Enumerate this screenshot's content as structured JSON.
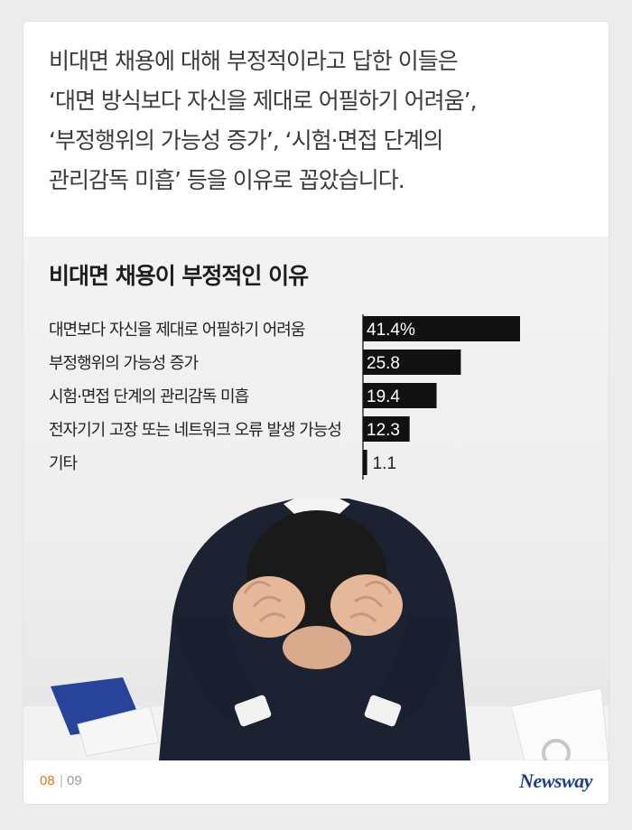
{
  "intro": {
    "lines": [
      "비대면 채용에 대해 부정적이라고 답한 이들은",
      "‘대면 방식보다 자신을 제대로 어필하기 어려움’,",
      "‘부정행위의 가능성 증가’, ‘시험·면접 단계의",
      "관리감독 미흡’ 등을 이유로 꼽았습니다."
    ]
  },
  "chart_data": {
    "type": "bar",
    "orientation": "horizontal",
    "title": "비대면 채용이 부정적인 이유",
    "categories": [
      "대면보다 자신을 제대로 어필하기 어려움",
      "부정행위의 가능성 증가",
      "시험·면접 단계의 관리감독 미흡",
      "전자기기 고장 또는 네트워크 오류 발생 가능성",
      "기타"
    ],
    "values": [
      41.4,
      25.8,
      19.4,
      12.3,
      1.1
    ],
    "value_labels": [
      "41.4%",
      "25.8",
      "19.4",
      "12.3",
      "1.1"
    ],
    "unit": "%",
    "xlim": [
      0,
      41.4
    ],
    "bar_color": "#111111",
    "value_label_color": "#ffffff",
    "grid": false,
    "legend": "none"
  },
  "footer": {
    "page_current": "08",
    "page_separator": "|",
    "page_total": "09",
    "logo": "Newsway"
  },
  "colors": {
    "accent": "#e07a1c",
    "logo": "#1b3f8f",
    "suit": "#1d2233",
    "hair": "#1a1a1a",
    "skin": "#e6b89a"
  }
}
